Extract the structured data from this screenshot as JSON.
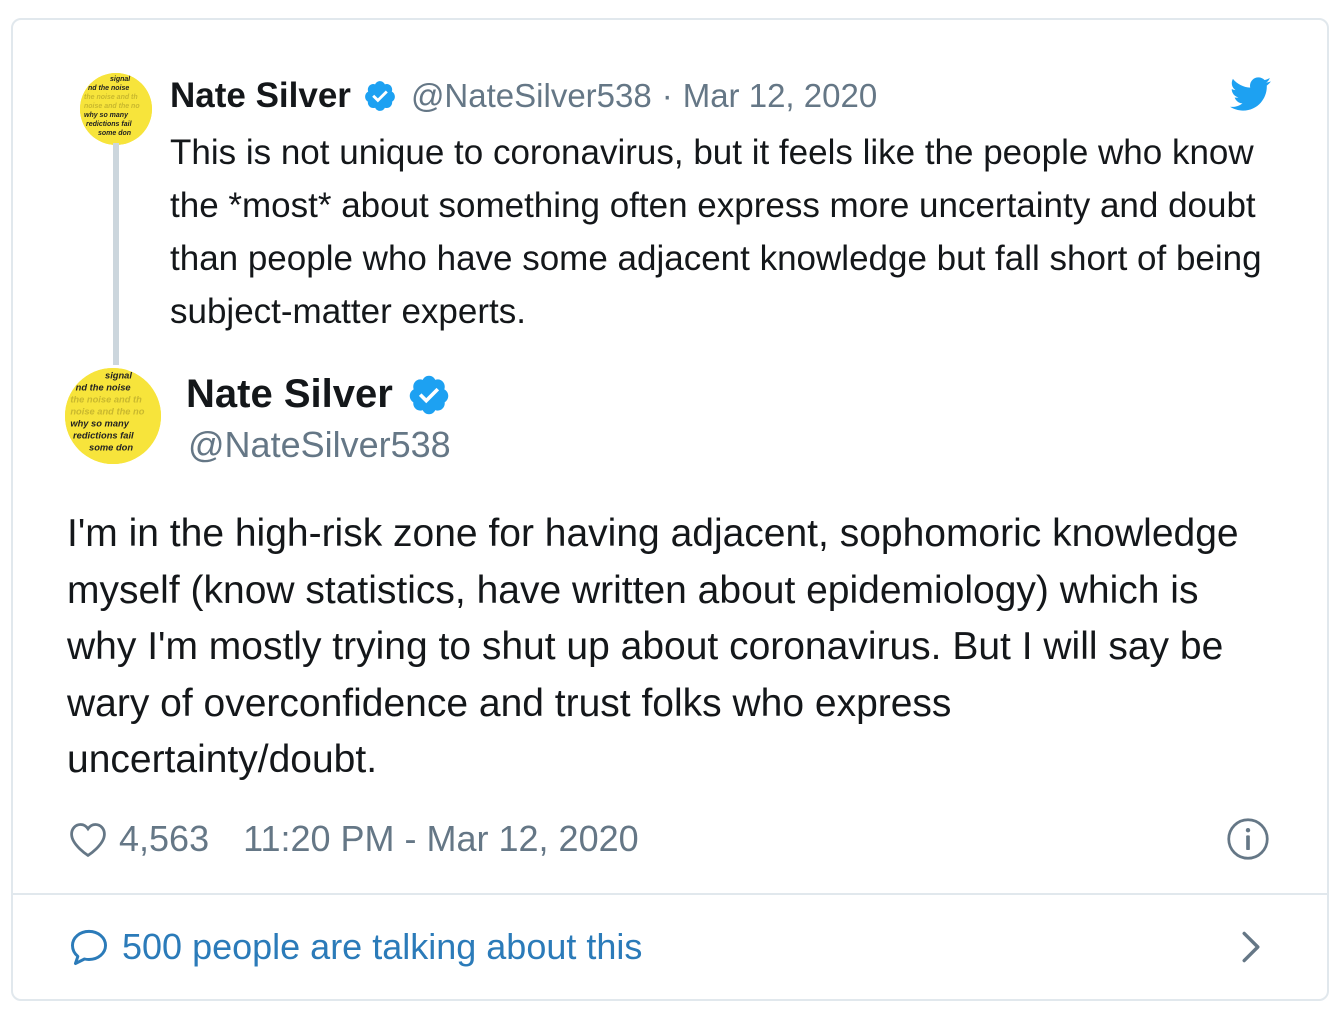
{
  "parent_tweet": {
    "display_name": "Nate Silver",
    "handle": "@NateSilver538",
    "separator": "·",
    "date": "Mar 12, 2020",
    "text": "This is not unique to coronavirus, but it feels like the people who know the *most* about something often express more uncertainty and doubt than people who have some adjacent knowledge but fall short of  being subject-matter experts."
  },
  "main_tweet": {
    "display_name": "Nate Silver",
    "handle": "@NateSilver538",
    "text": "I'm in the high-risk zone for having adjacent, sophomoric knowledge myself (know statistics, have written about epidemiology) which is why I'm mostly trying to shut up about coronavirus. But I will say be wary of overconfidence and trust folks who express uncertainty/doubt.",
    "likes": "4,563",
    "timestamp": "11:20 PM - Mar 12, 2020"
  },
  "conversation": {
    "label": "500 people are talking about this"
  },
  "avatar_lines": [
    "signal",
    "nd the noise",
    "the noise and th",
    "noise and the no",
    "why so many",
    "redictions fail",
    "some don"
  ],
  "icons": {
    "verified": "verified-badge-icon",
    "bird": "twitter-bird-icon",
    "heart": "heart-icon",
    "info": "info-icon",
    "bubble": "speech-bubble-icon",
    "chevron": "chevron-right-icon"
  },
  "colors": {
    "twitter_blue": "#1da1f2",
    "link_blue": "#2b7bb9",
    "secondary_text": "#657786",
    "border": "#e1e8ed",
    "avatar_yellow": "#f7e43b"
  }
}
